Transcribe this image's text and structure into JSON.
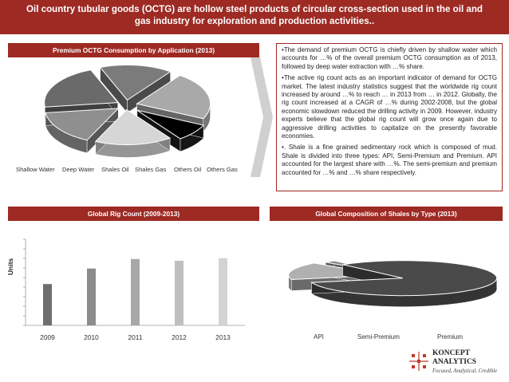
{
  "header": {
    "title_line1": "Oil country tubular goods (OCTG) are hollow steel products of circular cross-section used in the oil and",
    "title_line2": "gas industry for exploration and production activities.."
  },
  "chart_data": [
    {
      "type": "pie",
      "title": "Premium OCTG Consumption by Application (2013)",
      "categories": [
        "Shallow Water",
        "Deep Water",
        "Shales Oil",
        "Shales Gas",
        "Others Oil",
        "Others Gas"
      ],
      "values": [
        16,
        22,
        8,
        17,
        16,
        21
      ],
      "colors": [
        "#7b7b7b",
        "#a9a9a9",
        "#000000",
        "#d6d6d6",
        "#8f8f8f",
        "#6a6a6a"
      ]
    },
    {
      "type": "bar",
      "title": "Global Rig Count (2009-2013)",
      "categories": [
        "2009",
        "2010",
        "2011",
        "2012",
        "2013"
      ],
      "values": [
        2400,
        3300,
        3850,
        3750,
        3900
      ],
      "ylabel": "Units",
      "ylim": [
        0,
        5000
      ],
      "colors": [
        "#6e6e6e",
        "#8c8c8c",
        "#a8a8a8",
        "#bfbfbf",
        "#d3d3d3"
      ]
    },
    {
      "type": "pie",
      "title": "Global Composition of Shales by Type (2013)",
      "categories": [
        "API",
        "Semi-Premium",
        "Premium"
      ],
      "values": [
        16,
        2,
        82
      ],
      "colors": [
        "#b0b0b0",
        "#8a8a8a",
        "#4a4a4a"
      ]
    }
  ],
  "text_panel": {
    "p1": "•The demand of premium OCTG is chiefly driven by shallow water which accounts for …% of the overall premium OCTG consumption as of 2013, followed by deep water extraction with …% share.",
    "p2": "•The active rig count acts as an important indicator of demand for OCTG market. The latest industry statistics suggest that the worldwide rig count increased by around …% to reach … in 2013 from … in 2012. Globally, the rig count increased at a CAGR of …% during 2002-2008, but the global economic slowdown reduced the drilling activity in 2009. However, industry experts believe that the global rig count will grow once again due to aggressive drilling activities to capitalize on the presently favorable economies.",
    "p3": "•. Shale is a fine grained sedimentary rock which is composed of mud. Shale is divided into three types: API, Semi-Premium and Premium. API accounted for the largest share with …%. The semi-premium and premium accounted for …% and …% share respectively."
  },
  "logo": {
    "name_line1": "KONCEPT",
    "name_line2": "ANALYTICS",
    "tagline": "Focused, Analytical, Credible"
  }
}
